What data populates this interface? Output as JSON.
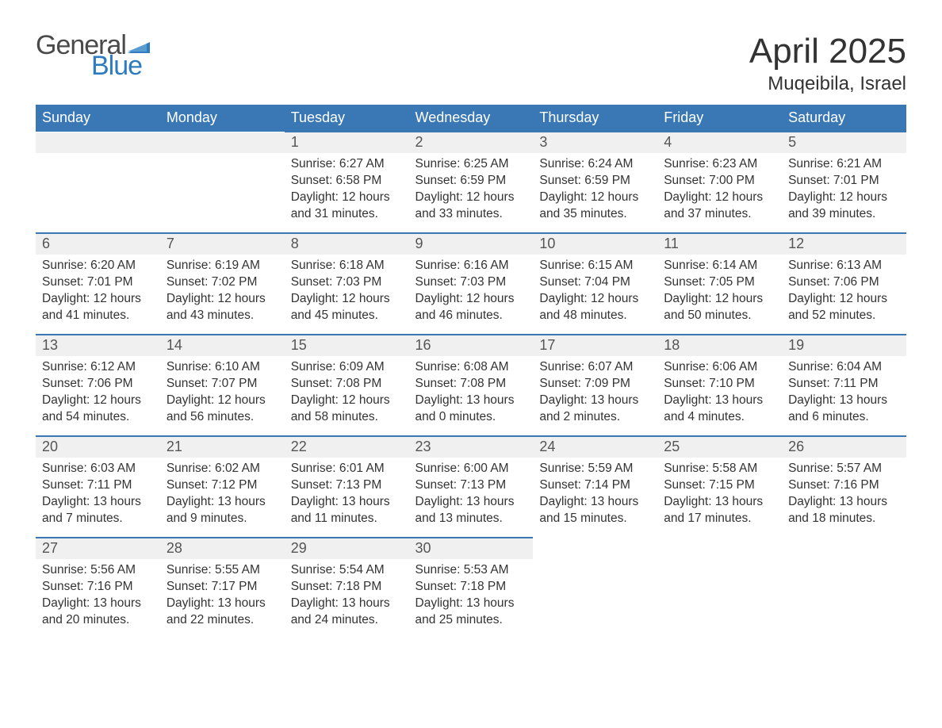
{
  "logo": {
    "text_a": "General",
    "text_b": "Blue",
    "flag_color": "#2f7bbf"
  },
  "title": "April 2025",
  "location": "Muqeibila, Israel",
  "colors": {
    "header_bg": "#3a78b5",
    "header_text": "#ffffff",
    "daybar_bg": "#f0f0f0",
    "daybar_text": "#555555",
    "border": "#3a78b5",
    "body_text": "#333333",
    "background": "#ffffff"
  },
  "typography": {
    "title_fontsize": 44,
    "location_fontsize": 24,
    "header_fontsize": 18,
    "daynum_fontsize": 18,
    "body_fontsize": 15.5
  },
  "layout": {
    "columns": 7,
    "rows": 5,
    "first_day_column_index": 2
  },
  "weekdays": [
    "Sunday",
    "Monday",
    "Tuesday",
    "Wednesday",
    "Thursday",
    "Friday",
    "Saturday"
  ],
  "days": [
    {
      "n": 1,
      "sunrise": "6:27 AM",
      "sunset": "6:58 PM",
      "daylight": "12 hours and 31 minutes."
    },
    {
      "n": 2,
      "sunrise": "6:25 AM",
      "sunset": "6:59 PM",
      "daylight": "12 hours and 33 minutes."
    },
    {
      "n": 3,
      "sunrise": "6:24 AM",
      "sunset": "6:59 PM",
      "daylight": "12 hours and 35 minutes."
    },
    {
      "n": 4,
      "sunrise": "6:23 AM",
      "sunset": "7:00 PM",
      "daylight": "12 hours and 37 minutes."
    },
    {
      "n": 5,
      "sunrise": "6:21 AM",
      "sunset": "7:01 PM",
      "daylight": "12 hours and 39 minutes."
    },
    {
      "n": 6,
      "sunrise": "6:20 AM",
      "sunset": "7:01 PM",
      "daylight": "12 hours and 41 minutes."
    },
    {
      "n": 7,
      "sunrise": "6:19 AM",
      "sunset": "7:02 PM",
      "daylight": "12 hours and 43 minutes."
    },
    {
      "n": 8,
      "sunrise": "6:18 AM",
      "sunset": "7:03 PM",
      "daylight": "12 hours and 45 minutes."
    },
    {
      "n": 9,
      "sunrise": "6:16 AM",
      "sunset": "7:03 PM",
      "daylight": "12 hours and 46 minutes."
    },
    {
      "n": 10,
      "sunrise": "6:15 AM",
      "sunset": "7:04 PM",
      "daylight": "12 hours and 48 minutes."
    },
    {
      "n": 11,
      "sunrise": "6:14 AM",
      "sunset": "7:05 PM",
      "daylight": "12 hours and 50 minutes."
    },
    {
      "n": 12,
      "sunrise": "6:13 AM",
      "sunset": "7:06 PM",
      "daylight": "12 hours and 52 minutes."
    },
    {
      "n": 13,
      "sunrise": "6:12 AM",
      "sunset": "7:06 PM",
      "daylight": "12 hours and 54 minutes."
    },
    {
      "n": 14,
      "sunrise": "6:10 AM",
      "sunset": "7:07 PM",
      "daylight": "12 hours and 56 minutes."
    },
    {
      "n": 15,
      "sunrise": "6:09 AM",
      "sunset": "7:08 PM",
      "daylight": "12 hours and 58 minutes."
    },
    {
      "n": 16,
      "sunrise": "6:08 AM",
      "sunset": "7:08 PM",
      "daylight": "13 hours and 0 minutes."
    },
    {
      "n": 17,
      "sunrise": "6:07 AM",
      "sunset": "7:09 PM",
      "daylight": "13 hours and 2 minutes."
    },
    {
      "n": 18,
      "sunrise": "6:06 AM",
      "sunset": "7:10 PM",
      "daylight": "13 hours and 4 minutes."
    },
    {
      "n": 19,
      "sunrise": "6:04 AM",
      "sunset": "7:11 PM",
      "daylight": "13 hours and 6 minutes."
    },
    {
      "n": 20,
      "sunrise": "6:03 AM",
      "sunset": "7:11 PM",
      "daylight": "13 hours and 7 minutes."
    },
    {
      "n": 21,
      "sunrise": "6:02 AM",
      "sunset": "7:12 PM",
      "daylight": "13 hours and 9 minutes."
    },
    {
      "n": 22,
      "sunrise": "6:01 AM",
      "sunset": "7:13 PM",
      "daylight": "13 hours and 11 minutes."
    },
    {
      "n": 23,
      "sunrise": "6:00 AM",
      "sunset": "7:13 PM",
      "daylight": "13 hours and 13 minutes."
    },
    {
      "n": 24,
      "sunrise": "5:59 AM",
      "sunset": "7:14 PM",
      "daylight": "13 hours and 15 minutes."
    },
    {
      "n": 25,
      "sunrise": "5:58 AM",
      "sunset": "7:15 PM",
      "daylight": "13 hours and 17 minutes."
    },
    {
      "n": 26,
      "sunrise": "5:57 AM",
      "sunset": "7:16 PM",
      "daylight": "13 hours and 18 minutes."
    },
    {
      "n": 27,
      "sunrise": "5:56 AM",
      "sunset": "7:16 PM",
      "daylight": "13 hours and 20 minutes."
    },
    {
      "n": 28,
      "sunrise": "5:55 AM",
      "sunset": "7:17 PM",
      "daylight": "13 hours and 22 minutes."
    },
    {
      "n": 29,
      "sunrise": "5:54 AM",
      "sunset": "7:18 PM",
      "daylight": "13 hours and 24 minutes."
    },
    {
      "n": 30,
      "sunrise": "5:53 AM",
      "sunset": "7:18 PM",
      "daylight": "13 hours and 25 minutes."
    }
  ],
  "labels": {
    "sunrise": "Sunrise: ",
    "sunset": "Sunset: ",
    "daylight": "Daylight: "
  }
}
